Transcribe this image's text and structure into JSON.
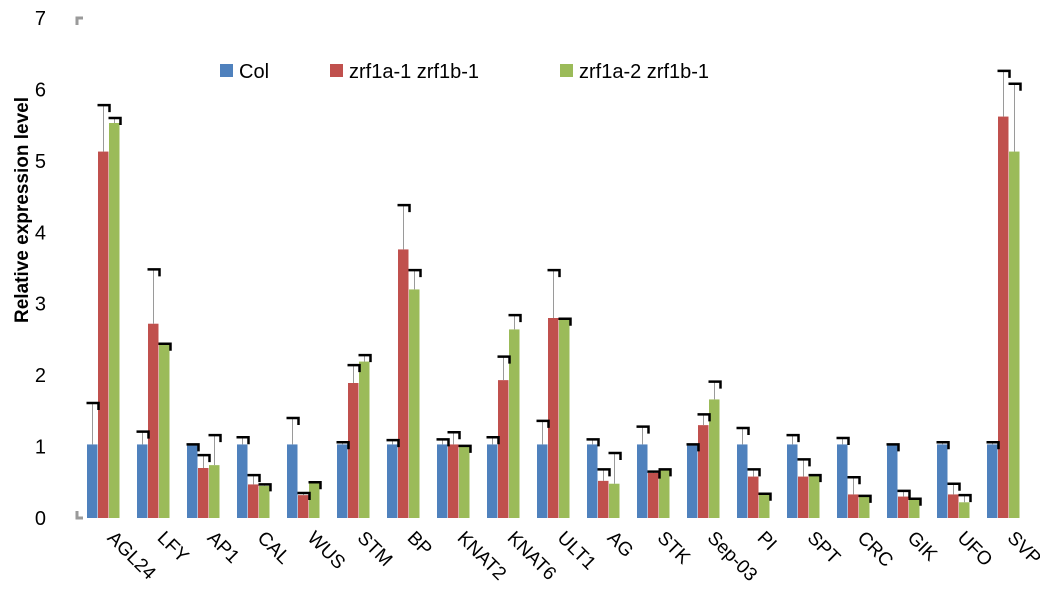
{
  "chart_data": {
    "type": "bar",
    "title": "",
    "xlabel": "",
    "ylabel": "Relative expression level",
    "ylim": [
      0,
      7
    ],
    "yticks": [
      0,
      1,
      2,
      3,
      4,
      5,
      6,
      7
    ],
    "grid": false,
    "legend_position": "top",
    "error_bars": true,
    "categories": [
      "AGL24",
      "LFY",
      "AP1",
      "CAL",
      "WUS",
      "STM",
      "BP",
      "KNAT2",
      "KNAT6",
      "ULT1",
      "AG",
      "STK",
      "Sep-03",
      "PI",
      "SPT",
      "CRC",
      "GIK",
      "UFO",
      "SVP"
    ],
    "series": [
      {
        "name": "Col",
        "color": "#4F81BD",
        "values": [
          1.03,
          1.03,
          1.03,
          1.03,
          1.03,
          1.03,
          1.03,
          1.03,
          1.03,
          1.03,
          1.03,
          1.03,
          1.03,
          1.03,
          1.03,
          1.03,
          1.03,
          1.03,
          1.03
        ],
        "errors": [
          0.58,
          0.18,
          0.0,
          0.1,
          0.37,
          0.03,
          0.06,
          0.07,
          0.1,
          0.33,
          0.07,
          0.25,
          0.0,
          0.23,
          0.13,
          0.09,
          0.0,
          0.03,
          0.03
        ]
      },
      {
        "name": "zrf1a-1 zrf1b-1",
        "color": "#C0504D",
        "values": [
          5.13,
          2.72,
          0.7,
          0.47,
          0.32,
          1.89,
          3.76,
          1.03,
          1.93,
          2.8,
          0.52,
          0.63,
          1.3,
          0.58,
          0.58,
          0.33,
          0.3,
          0.33,
          5.62
        ],
        "errors": [
          0.65,
          0.76,
          0.18,
          0.13,
          0.03,
          0.25,
          0.62,
          0.17,
          0.33,
          0.67,
          0.16,
          0.02,
          0.15,
          0.1,
          0.24,
          0.24,
          0.08,
          0.15,
          0.64
        ]
      },
      {
        "name": "zrf1a-2 zrf1b-1",
        "color": "#9BBB59",
        "values": [
          5.53,
          2.44,
          0.74,
          0.45,
          0.5,
          2.19,
          3.2,
          1.01,
          2.64,
          2.79,
          0.48,
          0.68,
          1.66,
          0.34,
          0.6,
          0.31,
          0.27,
          0.22,
          5.13
        ],
        "errors": [
          0.07,
          0.0,
          0.42,
          0.02,
          0.0,
          0.09,
          0.27,
          0.0,
          0.2,
          0.0,
          0.43,
          0.0,
          0.25,
          0.0,
          0.0,
          0.0,
          0.0,
          0.1,
          0.95
        ]
      }
    ]
  }
}
